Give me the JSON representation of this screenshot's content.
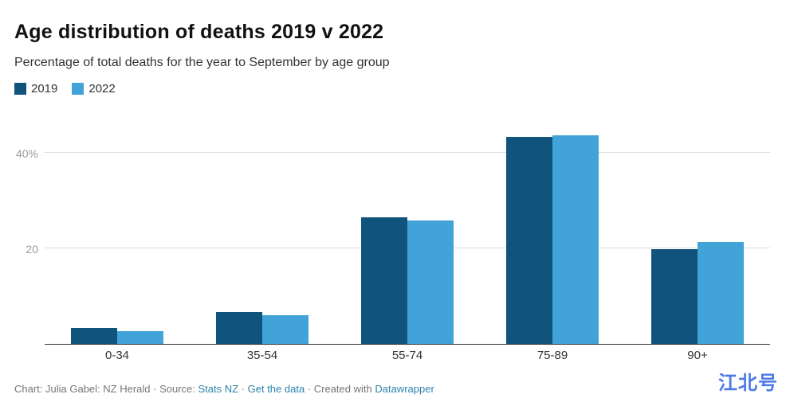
{
  "header": {
    "title": "Age distribution of deaths 2019 v 2022",
    "subtitle": "Percentage of total deaths for the year to September by age group"
  },
  "legend": {
    "items": [
      {
        "label": "2019",
        "color": "#10547e"
      },
      {
        "label": "2022",
        "color": "#41a3d8"
      }
    ]
  },
  "chart_data": {
    "type": "bar",
    "title": "Age distribution of deaths 2019 v 2022",
    "subtitle": "Percentage of total deaths for the year to September by age group",
    "categories": [
      "0-34",
      "35-54",
      "55-74",
      "75-89",
      "90+"
    ],
    "series": [
      {
        "name": "2019",
        "color": "#10547e",
        "values": [
          3.3,
          6.7,
          26.5,
          43.3,
          19.8
        ]
      },
      {
        "name": "2022",
        "color": "#41a3d8",
        "values": [
          2.7,
          6.0,
          25.9,
          43.7,
          21.3
        ]
      }
    ],
    "xlabel": "",
    "ylabel": "Percentage of total deaths",
    "ylim": [
      0,
      46.3
    ],
    "yticks": [
      {
        "value": 20,
        "label": "20"
      },
      {
        "value": 40,
        "label": "40%"
      }
    ],
    "grid": true,
    "legend_position": "top-left"
  },
  "footer": {
    "prefix": "Chart: Julia Gabel: NZ Herald · Source: ",
    "source_link": "Stats NZ",
    "sep1": " · ",
    "get_data_link": "Get the data",
    "sep2": " · Created with ",
    "datawrapper_link": "Datawrapper"
  },
  "watermark": {
    "text": "江北号",
    "color": "#4d7ae8"
  },
  "colors": {
    "grid": "#dddddd",
    "axis": "#333333",
    "tick_label": "#9b9b9b",
    "link": "#2d83ab"
  }
}
